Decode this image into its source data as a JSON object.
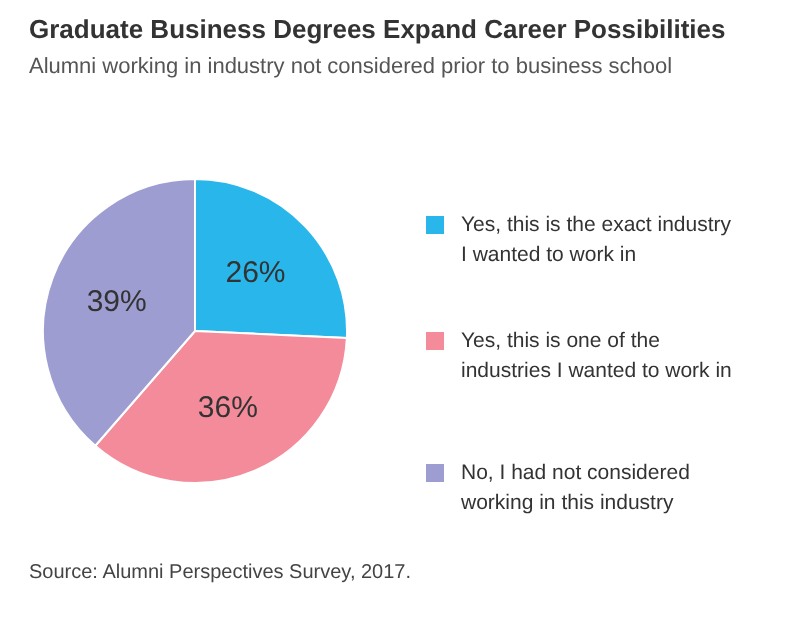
{
  "chart_data": {
    "type": "pie",
    "title": "Graduate Business Degrees Expand Career Possibilities",
    "subtitle": "Alumni working in industry not considered prior to business school",
    "categories": [
      "Yes, this is the exact industry I wanted to work in",
      "Yes, this is one of the industries I wanted to work in",
      "No, I had not considered working in this industry"
    ],
    "values": [
      26,
      36,
      39
    ],
    "colors": [
      "#29b6ea",
      "#f48b9b",
      "#9d9dd2"
    ],
    "value_labels": [
      "26%",
      "36%",
      "39%"
    ],
    "legend": "right",
    "annotations": [
      "Source: Alumni Perspectives Survey, 2017."
    ]
  }
}
